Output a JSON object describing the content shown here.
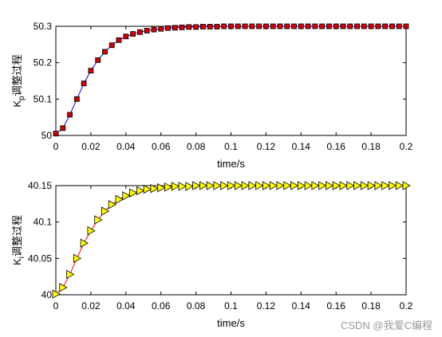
{
  "chart_data": [
    {
      "type": "line",
      "xlabel": "time/s",
      "ylabel": {
        "main": "K",
        "sub": "p",
        "suffix": "调整过程"
      },
      "xlim": [
        0,
        0.2
      ],
      "ylim": [
        50,
        50.3
      ],
      "xticks": [
        "0",
        "0.02",
        "0.04",
        "0.06",
        "0.08",
        "0.1",
        "0.12",
        "0.14",
        "0.16",
        "0.18",
        "0.2"
      ],
      "yticks": [
        "50",
        "50.1",
        "50.2",
        "50.3"
      ],
      "grid": false,
      "series": [
        {
          "line_color": "#0000ff",
          "marker": "square",
          "marker_fill": "#d40000",
          "marker_edge": "#000000",
          "x": [
            0,
            0.004,
            0.008,
            0.012,
            0.016,
            0.02,
            0.024,
            0.028,
            0.032,
            0.036,
            0.04,
            0.044,
            0.048,
            0.052,
            0.056,
            0.06,
            0.064,
            0.068,
            0.072,
            0.076,
            0.08,
            0.084,
            0.088,
            0.092,
            0.096,
            0.1,
            0.104,
            0.108,
            0.112,
            0.116,
            0.12,
            0.124,
            0.128,
            0.132,
            0.136,
            0.14,
            0.144,
            0.148,
            0.152,
            0.156,
            0.16,
            0.164,
            0.168,
            0.172,
            0.176,
            0.18,
            0.184,
            0.188,
            0.192,
            0.196,
            0.2
          ],
          "y": [
            50.005,
            50.02,
            50.057,
            50.1,
            50.143,
            50.178,
            50.207,
            50.23,
            50.248,
            50.262,
            50.272,
            50.279,
            50.284,
            50.288,
            50.291,
            50.293,
            50.295,
            50.296,
            50.297,
            50.298,
            50.298,
            50.299,
            50.299,
            50.299,
            50.3,
            50.3,
            50.3,
            50.3,
            50.3,
            50.3,
            50.3,
            50.3,
            50.3,
            50.3,
            50.3,
            50.3,
            50.3,
            50.3,
            50.3,
            50.3,
            50.3,
            50.3,
            50.3,
            50.3,
            50.3,
            50.3,
            50.3,
            50.3,
            50.3,
            50.3,
            50.3
          ]
        }
      ]
    },
    {
      "type": "line",
      "xlabel": "time/s",
      "ylabel": {
        "main": "K",
        "sub": "i",
        "suffix": "调整过程"
      },
      "xlim": [
        0,
        0.2
      ],
      "ylim": [
        40,
        40.15
      ],
      "xticks": [
        "0",
        "0.02",
        "0.04",
        "0.06",
        "0.08",
        "0.1",
        "0.12",
        "0.14",
        "0.16",
        "0.18",
        "0.2"
      ],
      "yticks": [
        "40",
        "40.05",
        "40.1",
        "40.15"
      ],
      "grid": false,
      "series": [
        {
          "line_color": "#ff0000",
          "marker": "triangle-right",
          "marker_fill": "#ffff00",
          "marker_edge": "#000000",
          "x": [
            0,
            0.004,
            0.008,
            0.012,
            0.016,
            0.02,
            0.024,
            0.028,
            0.032,
            0.036,
            0.04,
            0.044,
            0.048,
            0.052,
            0.056,
            0.06,
            0.064,
            0.068,
            0.072,
            0.076,
            0.08,
            0.084,
            0.088,
            0.092,
            0.096,
            0.1,
            0.104,
            0.108,
            0.112,
            0.116,
            0.12,
            0.124,
            0.128,
            0.132,
            0.136,
            0.14,
            0.144,
            0.148,
            0.152,
            0.156,
            0.16,
            0.164,
            0.168,
            0.172,
            0.176,
            0.18,
            0.184,
            0.188,
            0.192,
            0.196,
            0.2
          ],
          "y": [
            40.001,
            40.01,
            40.028,
            40.05,
            40.071,
            40.088,
            40.103,
            40.115,
            40.124,
            40.131,
            40.136,
            40.14,
            40.143,
            40.145,
            40.146,
            40.147,
            40.148,
            40.149,
            40.149,
            40.149,
            40.15,
            40.15,
            40.15,
            40.15,
            40.15,
            40.15,
            40.15,
            40.15,
            40.15,
            40.15,
            40.15,
            40.15,
            40.15,
            40.15,
            40.15,
            40.15,
            40.15,
            40.15,
            40.15,
            40.15,
            40.15,
            40.15,
            40.15,
            40.15,
            40.15,
            40.15,
            40.15,
            40.15,
            40.15,
            40.15,
            40.15
          ]
        }
      ]
    }
  ],
  "watermark": "CSDN @我爱C编程"
}
